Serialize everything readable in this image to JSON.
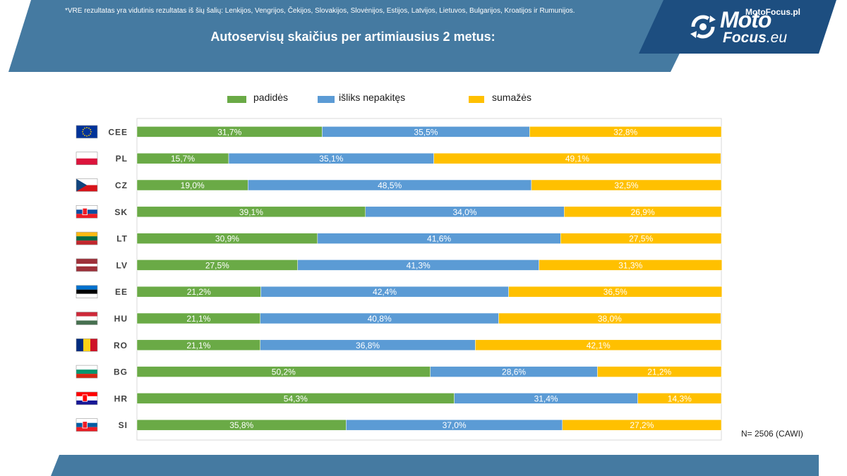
{
  "header": {
    "title": "Autoservisų skaičius per artimiausius 2 metus:"
  },
  "logo": {
    "line1": "Moto",
    "line2": "Focus",
    "suffix": ".eu",
    "icon": "gear-arrows-icon"
  },
  "colors": {
    "banner": "#457aa1",
    "banner_dark": "#1d4e80",
    "increase": "#6aaa46",
    "unchanged": "#5b9bd5",
    "decrease": "#ffc000",
    "footer": "#457aa1"
  },
  "chart_data": {
    "type": "bar",
    "orientation": "horizontal",
    "stacked": true,
    "percent": true,
    "title": "Autoservisų skaičius per artimiausius 2 metus:",
    "xlim": [
      0,
      100
    ],
    "legend_position": "top",
    "grid": false,
    "categories": [
      "CEE",
      "PL",
      "CZ",
      "SK",
      "LT",
      "LV",
      "EE",
      "HU",
      "RO",
      "BG",
      "HR",
      "SI"
    ],
    "category_flags": [
      "eu",
      "pl",
      "cz",
      "sk",
      "lt",
      "lv",
      "ee",
      "hu",
      "ro",
      "bg",
      "hr",
      "si"
    ],
    "series": [
      {
        "name": "padidės",
        "color": "#6aaa46",
        "values": [
          31.7,
          15.7,
          19.0,
          39.1,
          30.9,
          27.5,
          21.2,
          21.1,
          21.1,
          50.2,
          54.3,
          35.8
        ],
        "labels": [
          "31,7%",
          "15,7%",
          "19,0%",
          "39,1%",
          "30,9%",
          "27,5%",
          "21,2%",
          "21,1%",
          "21,1%",
          "50,2%",
          "54,3%",
          "35,8%"
        ]
      },
      {
        "name": "išliks nepakitęs",
        "color": "#5b9bd5",
        "values": [
          35.5,
          35.1,
          48.5,
          34.0,
          41.6,
          41.3,
          42.4,
          40.8,
          36.8,
          28.6,
          31.4,
          37.0
        ],
        "labels": [
          "35,5%",
          "35,1%",
          "48,5%",
          "34,0%",
          "41,6%",
          "41,3%",
          "42,4%",
          "40,8%",
          "36,8%",
          "28,6%",
          "31,4%",
          "37,0%"
        ]
      },
      {
        "name": "sumažės",
        "color": "#ffc000",
        "values": [
          32.8,
          49.1,
          32.5,
          26.9,
          27.5,
          31.3,
          36.5,
          38.0,
          42.1,
          21.2,
          14.3,
          27.2
        ],
        "labels": [
          "32,8%",
          "49,1%",
          "32,5%",
          "26,9%",
          "27,5%",
          "31,3%",
          "36,5%",
          "38,0%",
          "42,1%",
          "21,2%",
          "14,3%",
          "27,2%"
        ]
      }
    ]
  },
  "notes": {
    "sample": "N= 2506 (CAWI)",
    "footnote": "*VRE rezultatas yra vidutinis rezultatas iš šių šalių: Lenkijos, Vengrijos, Čekijos, Slovakijos, Slovėnijos, Estijos, Latvijos, Lietuvos, Bulgarijos, Kroatijos ir Rumunijos.",
    "site": "MotoFocus.pl"
  }
}
